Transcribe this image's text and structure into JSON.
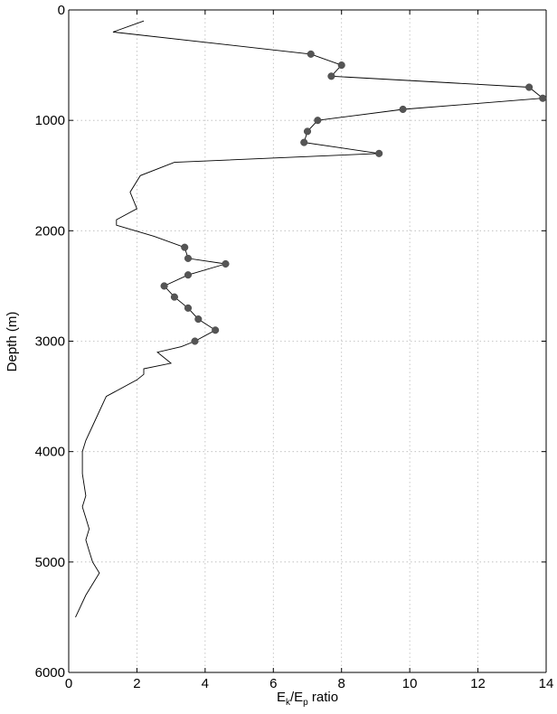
{
  "chart_data": {
    "type": "line",
    "title": "",
    "xlabel": {
      "main": "E",
      "sub1": "k",
      "slash": "/E",
      "sub2": "p",
      "rest": " ratio"
    },
    "ylabel": "Depth (m)",
    "xlim": [
      0,
      14
    ],
    "ylim": [
      0,
      6000
    ],
    "y_inverted": true,
    "x_ticks": [
      "0",
      "2",
      "4",
      "6",
      "8",
      "10",
      "12",
      "14"
    ],
    "y_ticks": [
      "0",
      "1000",
      "2000",
      "3000",
      "4000",
      "5000",
      "6000"
    ],
    "grid": true,
    "colors": {
      "line": "#000000",
      "marker": "#555555",
      "grid": "#b8b8b8"
    },
    "series": [
      {
        "x": [
          2.2,
          1.3,
          7.1,
          8.0,
          7.7,
          13.5,
          13.9,
          9.8,
          7.3,
          7.0,
          6.9,
          9.1,
          3.1,
          2.1,
          1.8,
          2.0,
          1.4,
          1.4,
          2.5,
          3.4,
          3.5,
          4.6,
          3.5,
          2.8,
          3.1,
          3.5,
          3.8,
          4.3,
          3.7,
          3.3,
          2.6,
          3.0,
          2.2,
          2.2,
          2.0,
          1.1,
          0.8,
          0.5,
          0.4,
          0.4,
          0.5,
          0.4,
          0.5,
          0.6,
          0.5,
          0.6,
          0.7,
          0.9,
          0.5,
          0.2
        ],
        "y": [
          100,
          200,
          400,
          500,
          600,
          700,
          800,
          900,
          1000,
          1100,
          1200,
          1300,
          1380,
          1500,
          1650,
          1800,
          1900,
          1950,
          2050,
          2150,
          2250,
          2300,
          2400,
          2500,
          2600,
          2700,
          2800,
          2900,
          3000,
          3050,
          3100,
          3200,
          3250,
          3300,
          3350,
          3500,
          3700,
          3900,
          4000,
          4200,
          4400,
          4500,
          4600,
          4700,
          4800,
          4900,
          5000,
          5100,
          5300,
          5500
        ],
        "markers": [
          {
            "x": 7.1,
            "y": 400
          },
          {
            "x": 8.0,
            "y": 500
          },
          {
            "x": 7.7,
            "y": 600
          },
          {
            "x": 13.5,
            "y": 700
          },
          {
            "x": 13.9,
            "y": 800
          },
          {
            "x": 9.8,
            "y": 900
          },
          {
            "x": 7.3,
            "y": 1000
          },
          {
            "x": 7.0,
            "y": 1100
          },
          {
            "x": 6.9,
            "y": 1200
          },
          {
            "x": 9.1,
            "y": 1300
          },
          {
            "x": 3.4,
            "y": 2150
          },
          {
            "x": 3.5,
            "y": 2250
          },
          {
            "x": 4.6,
            "y": 2300
          },
          {
            "x": 3.5,
            "y": 2400
          },
          {
            "x": 2.8,
            "y": 2500
          },
          {
            "x": 3.1,
            "y": 2600
          },
          {
            "x": 3.5,
            "y": 2700
          },
          {
            "x": 3.8,
            "y": 2800
          },
          {
            "x": 4.3,
            "y": 2900
          },
          {
            "x": 3.7,
            "y": 3000
          }
        ]
      }
    ]
  }
}
